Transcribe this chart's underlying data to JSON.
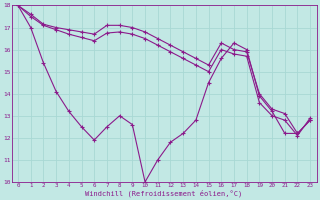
{
  "xlabel": "Windchill (Refroidissement éolien,°C)",
  "background_color": "#c2e8e4",
  "grid_color": "#a8d8d4",
  "line_color": "#8b1a8b",
  "xlim": [
    -0.5,
    23.5
  ],
  "ylim": [
    10,
    18
  ],
  "xticks": [
    0,
    1,
    2,
    3,
    4,
    5,
    6,
    7,
    8,
    9,
    10,
    11,
    12,
    13,
    14,
    15,
    16,
    17,
    18,
    19,
    20,
    21,
    22,
    23
  ],
  "yticks": [
    10,
    11,
    12,
    13,
    14,
    15,
    16,
    17,
    18
  ],
  "series1_x": [
    0,
    1,
    2,
    3,
    4,
    5,
    6,
    7,
    8,
    9,
    10,
    11,
    12,
    13,
    14,
    15,
    16,
    17,
    18,
    19,
    20,
    21,
    22,
    23
  ],
  "series1_y": [
    18,
    17.6,
    17.15,
    17.0,
    16.9,
    16.8,
    16.7,
    17.1,
    17.1,
    17.0,
    16.8,
    16.5,
    16.2,
    15.9,
    15.6,
    15.3,
    16.3,
    16.0,
    15.9,
    14.0,
    13.3,
    13.1,
    12.2,
    12.8
  ],
  "series2_x": [
    0,
    1,
    2,
    3,
    4,
    5,
    6,
    7,
    8,
    9,
    10,
    11,
    12,
    13,
    14,
    15,
    16,
    17,
    18,
    19,
    20,
    21,
    22,
    23
  ],
  "series2_y": [
    18,
    17.5,
    17.1,
    16.9,
    16.7,
    16.55,
    16.4,
    16.75,
    16.8,
    16.7,
    16.5,
    16.2,
    15.9,
    15.6,
    15.3,
    15.0,
    16.0,
    15.8,
    15.7,
    13.6,
    13.0,
    12.8,
    12.1,
    12.9
  ],
  "series3_x": [
    0,
    1,
    2,
    3,
    4,
    5,
    6,
    7,
    8,
    9,
    10,
    11,
    12,
    13,
    14,
    15,
    16,
    17,
    18,
    19,
    20,
    21,
    22,
    23
  ],
  "series3_y": [
    18,
    17.0,
    15.4,
    14.1,
    13.2,
    12.5,
    11.9,
    12.5,
    13.0,
    12.6,
    10.0,
    11.0,
    11.8,
    12.2,
    12.8,
    14.5,
    15.6,
    16.3,
    16.0,
    13.9,
    13.2,
    12.2,
    12.2,
    12.8
  ],
  "marker": "+"
}
